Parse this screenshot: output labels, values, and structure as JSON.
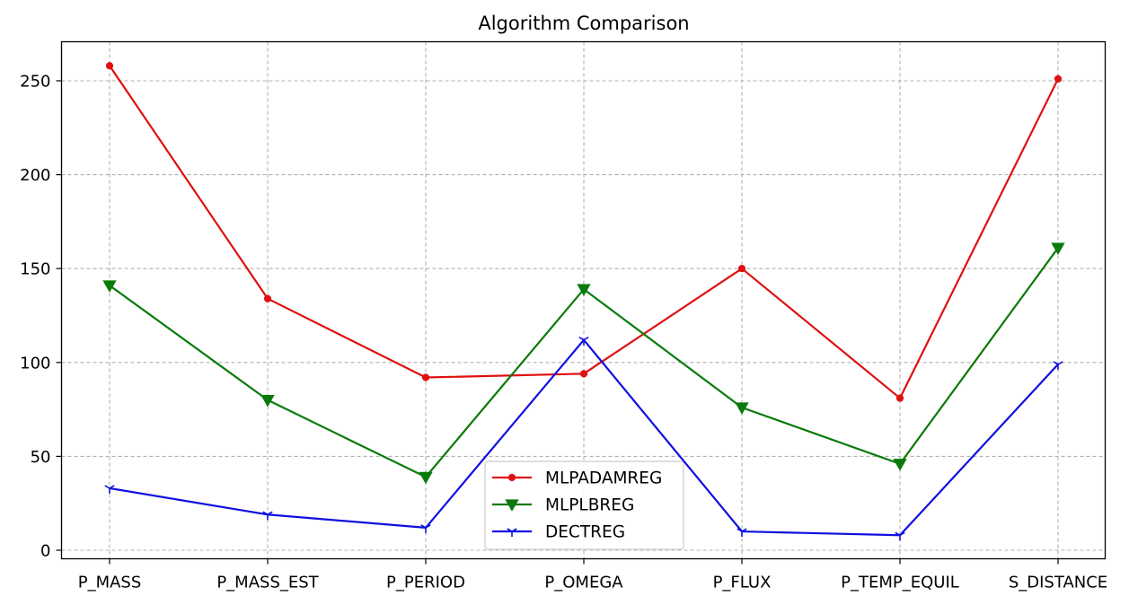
{
  "chart_data": {
    "type": "line",
    "title": "Algorithm Comparison",
    "xlabel": "",
    "ylabel": "",
    "categories": [
      "P_MASS",
      "P_MASS_EST",
      "P_PERIOD",
      "P_OMEGA",
      "P_FLUX",
      "P_TEMP_EQUIL",
      "S_DISTANCE"
    ],
    "ylim": [
      -4,
      271
    ],
    "yticks": [
      0,
      50,
      100,
      150,
      200,
      250
    ],
    "grid": true,
    "grid_style": "dashed",
    "legend_placement": "lower-center",
    "series": [
      {
        "name": "MLPADAMREG",
        "color": "#e01010",
        "marker": "dot",
        "values": [
          258,
          134,
          92,
          94,
          150,
          81,
          251
        ]
      },
      {
        "name": "MLPLBREG",
        "color": "#0a7a0a",
        "marker": "triangle-down",
        "values": [
          141,
          80,
          39,
          139,
          76,
          46,
          161
        ]
      },
      {
        "name": "DECTREG",
        "color": "#1010e0",
        "marker": "tri-down",
        "values": [
          33,
          19,
          12,
          112,
          10,
          8,
          99
        ]
      }
    ]
  }
}
